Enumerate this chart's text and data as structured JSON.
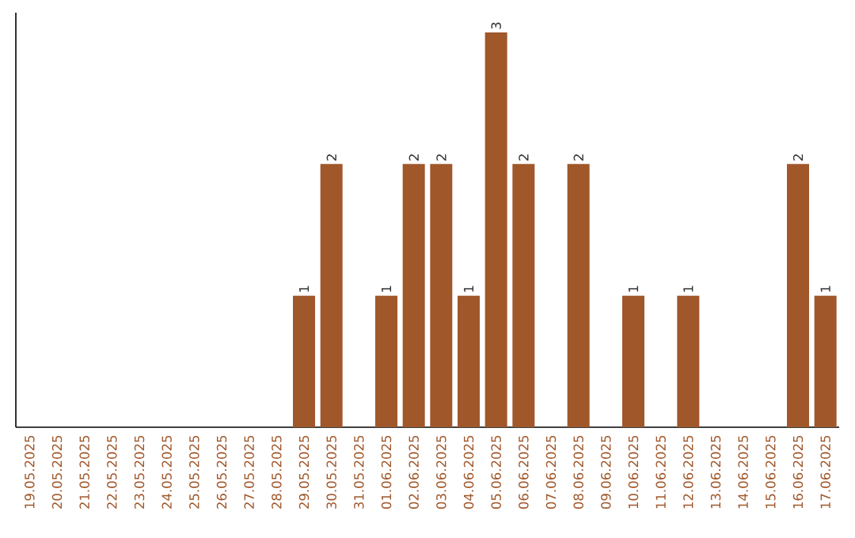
{
  "chart_data": {
    "type": "bar",
    "categories": [
      "19.05.2025",
      "20.05.2025",
      "21.05.2025",
      "22.05.2025",
      "23.05.2025",
      "24.05.2025",
      "25.05.2025",
      "26.05.2025",
      "27.05.2025",
      "28.05.2025",
      "29.05.2025",
      "30.05.2025",
      "31.05.2025",
      "01.06.2025",
      "02.06.2025",
      "03.06.2025",
      "04.06.2025",
      "05.06.2025",
      "06.06.2025",
      "07.06.2025",
      "08.06.2025",
      "09.06.2025",
      "10.06.2025",
      "11.06.2025",
      "12.06.2025",
      "13.06.2025",
      "14.06.2025",
      "15.06.2025",
      "16.06.2025",
      "17.06.2025"
    ],
    "values": [
      0,
      0,
      0,
      0,
      0,
      0,
      0,
      0,
      0,
      0,
      1,
      2,
      0,
      1,
      2,
      2,
      1,
      3,
      2,
      0,
      2,
      0,
      1,
      0,
      1,
      0,
      0,
      0,
      2,
      1
    ],
    "value_labels": [
      null,
      null,
      null,
      null,
      null,
      null,
      null,
      null,
      null,
      null,
      "1",
      "2",
      null,
      "1",
      "2",
      "2",
      "1",
      "3",
      "2",
      null,
      "2",
      null,
      "1",
      null,
      "1",
      null,
      null,
      null,
      "2",
      "1"
    ],
    "color": "#a0572a"
  }
}
